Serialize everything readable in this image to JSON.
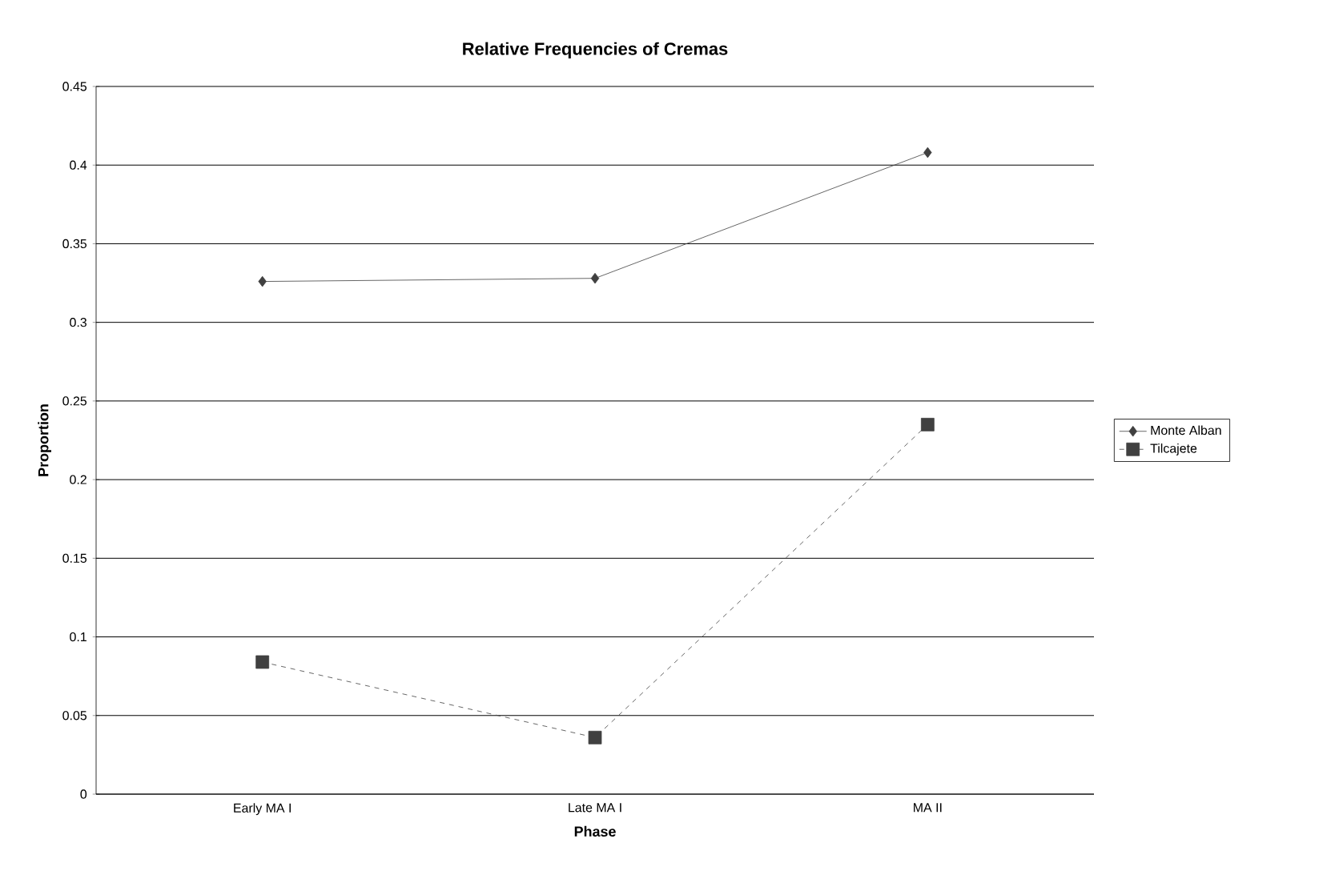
{
  "chart_data": {
    "type": "line",
    "title": "Relative Frequencies of Cremas",
    "xlabel": "Phase",
    "ylabel": "Proportion",
    "categories": [
      "Early MA I",
      "Late MA I",
      "MA II"
    ],
    "series": [
      {
        "name": "Monte Alban",
        "color": "#404040",
        "marker": "diamond",
        "line_style": "solid",
        "values": [
          0.326,
          0.328,
          0.408
        ]
      },
      {
        "name": "Tilcajete",
        "color": "#404040",
        "marker": "square",
        "line_style": "dashed",
        "values": [
          0.084,
          0.036,
          0.235
        ]
      }
    ],
    "ylim": [
      0,
      0.45
    ],
    "yticks": [
      0,
      0.05,
      0.1,
      0.15,
      0.2,
      0.25,
      0.3,
      0.35,
      0.4,
      0.45
    ],
    "grid": "y",
    "legend": "right"
  }
}
